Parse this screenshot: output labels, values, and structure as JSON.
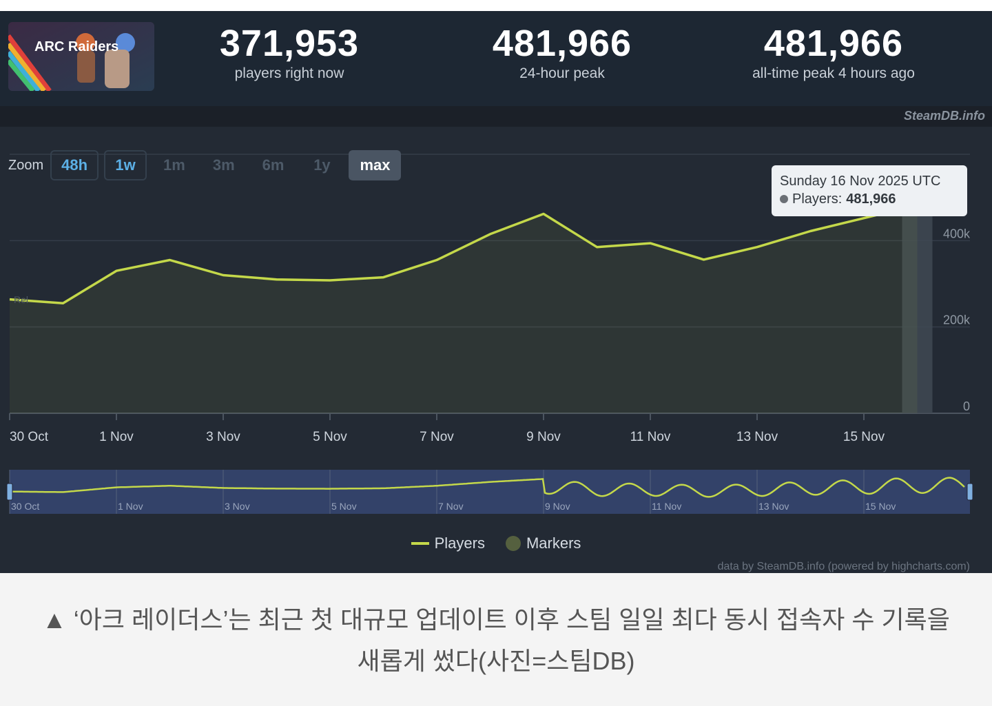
{
  "header": {
    "logo_text": "ARC Raiders",
    "stats": [
      {
        "value": "371,953",
        "label": "players right now"
      },
      {
        "value": "481,966",
        "label": "24-hour peak"
      },
      {
        "value": "481,966",
        "label": "all-time peak 4 hours ago"
      }
    ],
    "credit": "SteamDB.info"
  },
  "zoom": {
    "label": "Zoom",
    "buttons": [
      {
        "label": "48h",
        "state": "enabled"
      },
      {
        "label": "1w",
        "state": "enabled"
      },
      {
        "label": "1m",
        "state": "disabled"
      },
      {
        "label": "3m",
        "state": "disabled"
      },
      {
        "label": "6m",
        "state": "disabled"
      },
      {
        "label": "1y",
        "state": "disabled"
      },
      {
        "label": "max",
        "state": "selected"
      }
    ]
  },
  "tooltip": {
    "date": "Sunday 16 Nov 2025 UTC",
    "series_label": "Players:",
    "value": "481,966"
  },
  "legend": {
    "players": "Players",
    "markers": "Markers"
  },
  "credit_bottom": "data by SteamDB.info (powered by highcharts.com)",
  "caption": {
    "line1": "▲ ‘아크 레이더스’는 최근 첫 대규모 업데이트 이후 스팀 일일 최다 동시 접속자 수 기록을",
    "line2": "새롭게 썼다(사진=스팀DB)"
  },
  "colors": {
    "line": "#c4d84a",
    "background": "#232a34",
    "navigator": "#3a4c8a"
  },
  "chart_data": {
    "type": "line",
    "series": [
      {
        "name": "Players",
        "x": [
          "2025-10-30",
          "2025-10-31",
          "2025-11-01",
          "2025-11-02",
          "2025-11-03",
          "2025-11-04",
          "2025-11-05",
          "2025-11-06",
          "2025-11-07",
          "2025-11-08",
          "2025-11-09",
          "2025-11-10",
          "2025-11-11",
          "2025-11-12",
          "2025-11-13",
          "2025-11-14",
          "2025-11-15",
          "2025-11-16"
        ],
        "values": [
          264000,
          255000,
          330000,
          355000,
          320000,
          310000,
          308000,
          315000,
          355000,
          415000,
          462000,
          385000,
          394000,
          356000,
          385000,
          422000,
          452000,
          481966
        ]
      }
    ],
    "x_tick_labels": [
      "30 Oct",
      "1 Nov",
      "3 Nov",
      "5 Nov",
      "7 Nov",
      "9 Nov",
      "11 Nov",
      "13 Nov",
      "15 Nov"
    ],
    "y_tick_labels": [
      "0",
      "200k",
      "400k"
    ],
    "ylim": [
      0,
      600000
    ],
    "grid": true,
    "legend_position": "bottom-center",
    "annotation": "Rel",
    "navigator_tick_labels": [
      "30 Oct",
      "1 Nov",
      "3 Nov",
      "5 Nov",
      "7 Nov",
      "9 Nov",
      "11 Nov",
      "13 Nov",
      "15 Nov"
    ]
  }
}
